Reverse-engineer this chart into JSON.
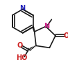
{
  "bg_color": "#ffffff",
  "bond_color": "#1a1a1a",
  "atom_colors": {
    "N_py": "#2222bb",
    "N_ring": "#cc2288",
    "O": "#cc2020",
    "C": "#1a1a1a"
  },
  "line_width": 1.2,
  "figsize": [
    0.98,
    1.06
  ],
  "dpi": 100,
  "xlim": [
    -1.2,
    1.5
  ],
  "ylim": [
    -1.5,
    1.5
  ]
}
